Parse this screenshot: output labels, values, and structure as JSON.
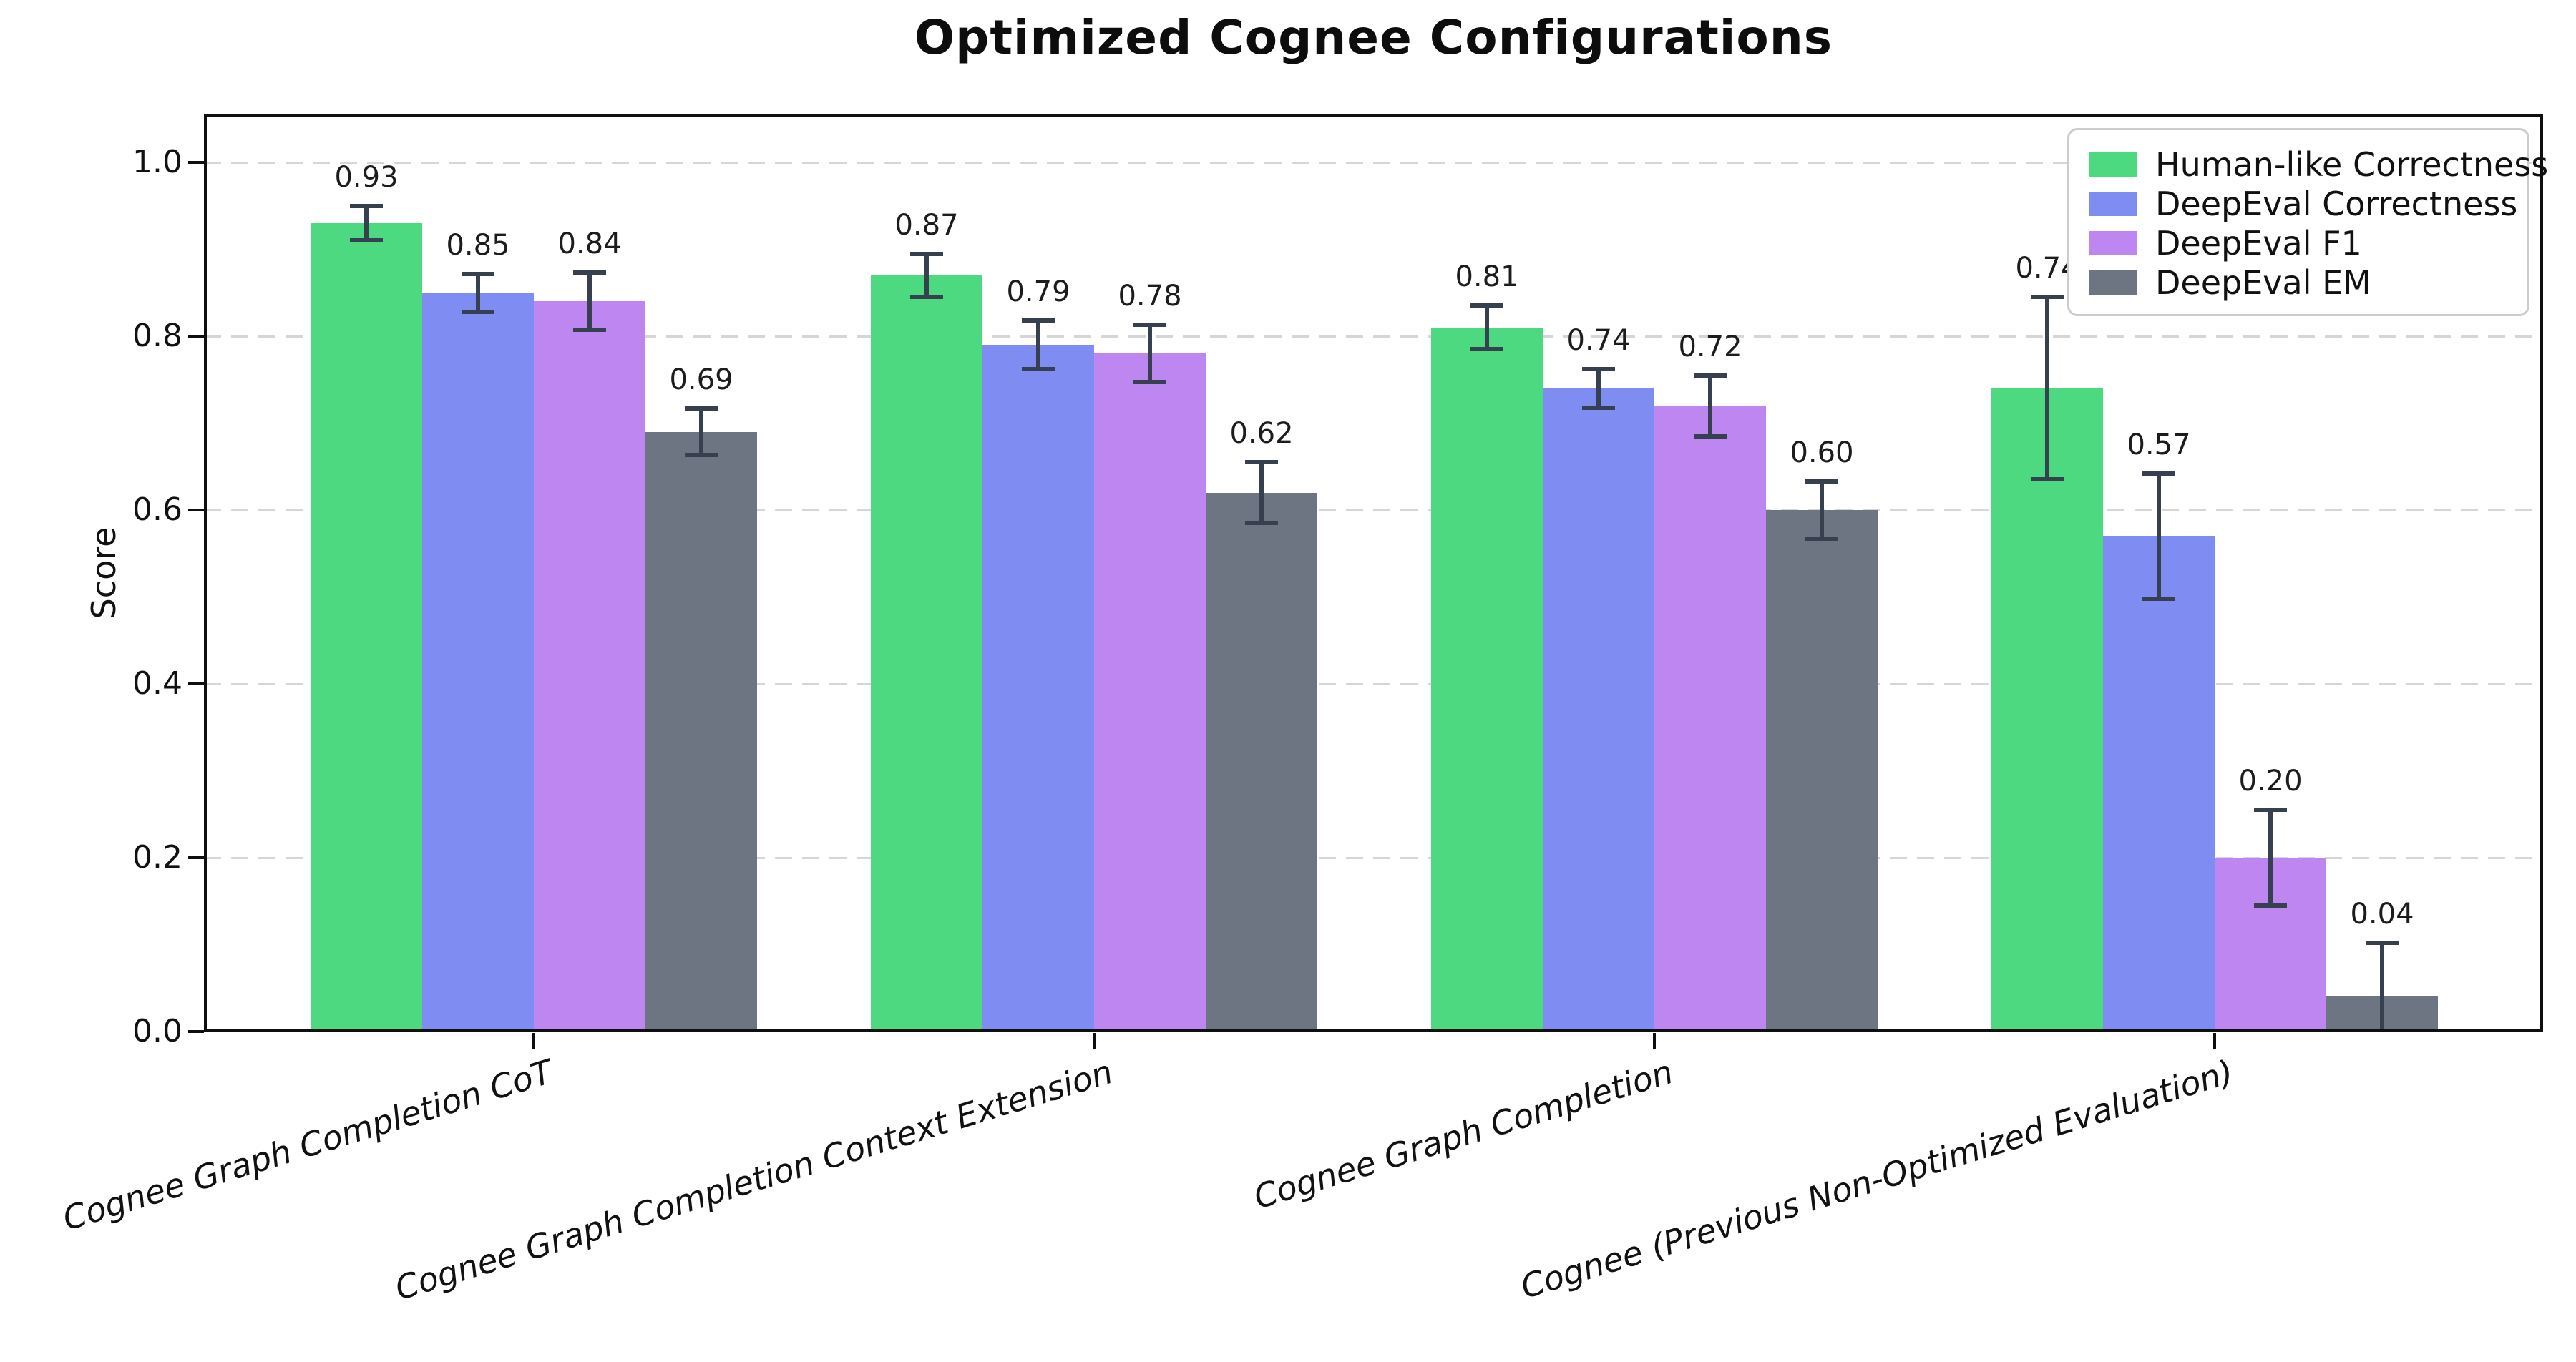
{
  "title": "Optimized Cognee Configurations",
  "chart_data": {
    "type": "bar",
    "title": "Optimized Cognee Configurations",
    "xlabel": "",
    "ylabel": "Score",
    "categories": [
      "Cognee Graph Completion CoT",
      "Cognee Graph Completion Context Extension",
      "Cognee Graph Completion",
      "Cognee (Previous Non-Optimized Evaluation)"
    ],
    "series": [
      {
        "name": "Human-like Correctness",
        "color": "#4cd97f",
        "values": [
          0.93,
          0.87,
          0.81,
          0.74
        ],
        "errors": [
          0.02,
          0.025,
          0.025,
          0.105
        ]
      },
      {
        "name": "DeepEval Correctness",
        "color": "#7f8cf2",
        "values": [
          0.85,
          0.79,
          0.74,
          0.57
        ],
        "errors": [
          0.022,
          0.028,
          0.022,
          0.072
        ]
      },
      {
        "name": "DeepEval F1",
        "color": "#bd86f0",
        "values": [
          0.84,
          0.78,
          0.72,
          0.2
        ],
        "errors": [
          0.033,
          0.033,
          0.035,
          0.055
        ]
      },
      {
        "name": "DeepEval EM",
        "color": "#6d7583",
        "values": [
          0.69,
          0.62,
          0.6,
          0.04
        ],
        "errors": [
          0.027,
          0.035,
          0.033,
          0.062
        ]
      }
    ],
    "yticks": [
      "0.0",
      "0.2",
      "0.4",
      "0.6",
      "0.8",
      "1.0"
    ],
    "ylim": [
      0.0,
      1.05
    ],
    "grid": "horizontal-dashed",
    "grid_color": "#d6d6d6",
    "error_bar_color": "#36404e",
    "legend_position": "upper right",
    "value_label_decimals": 2
  }
}
